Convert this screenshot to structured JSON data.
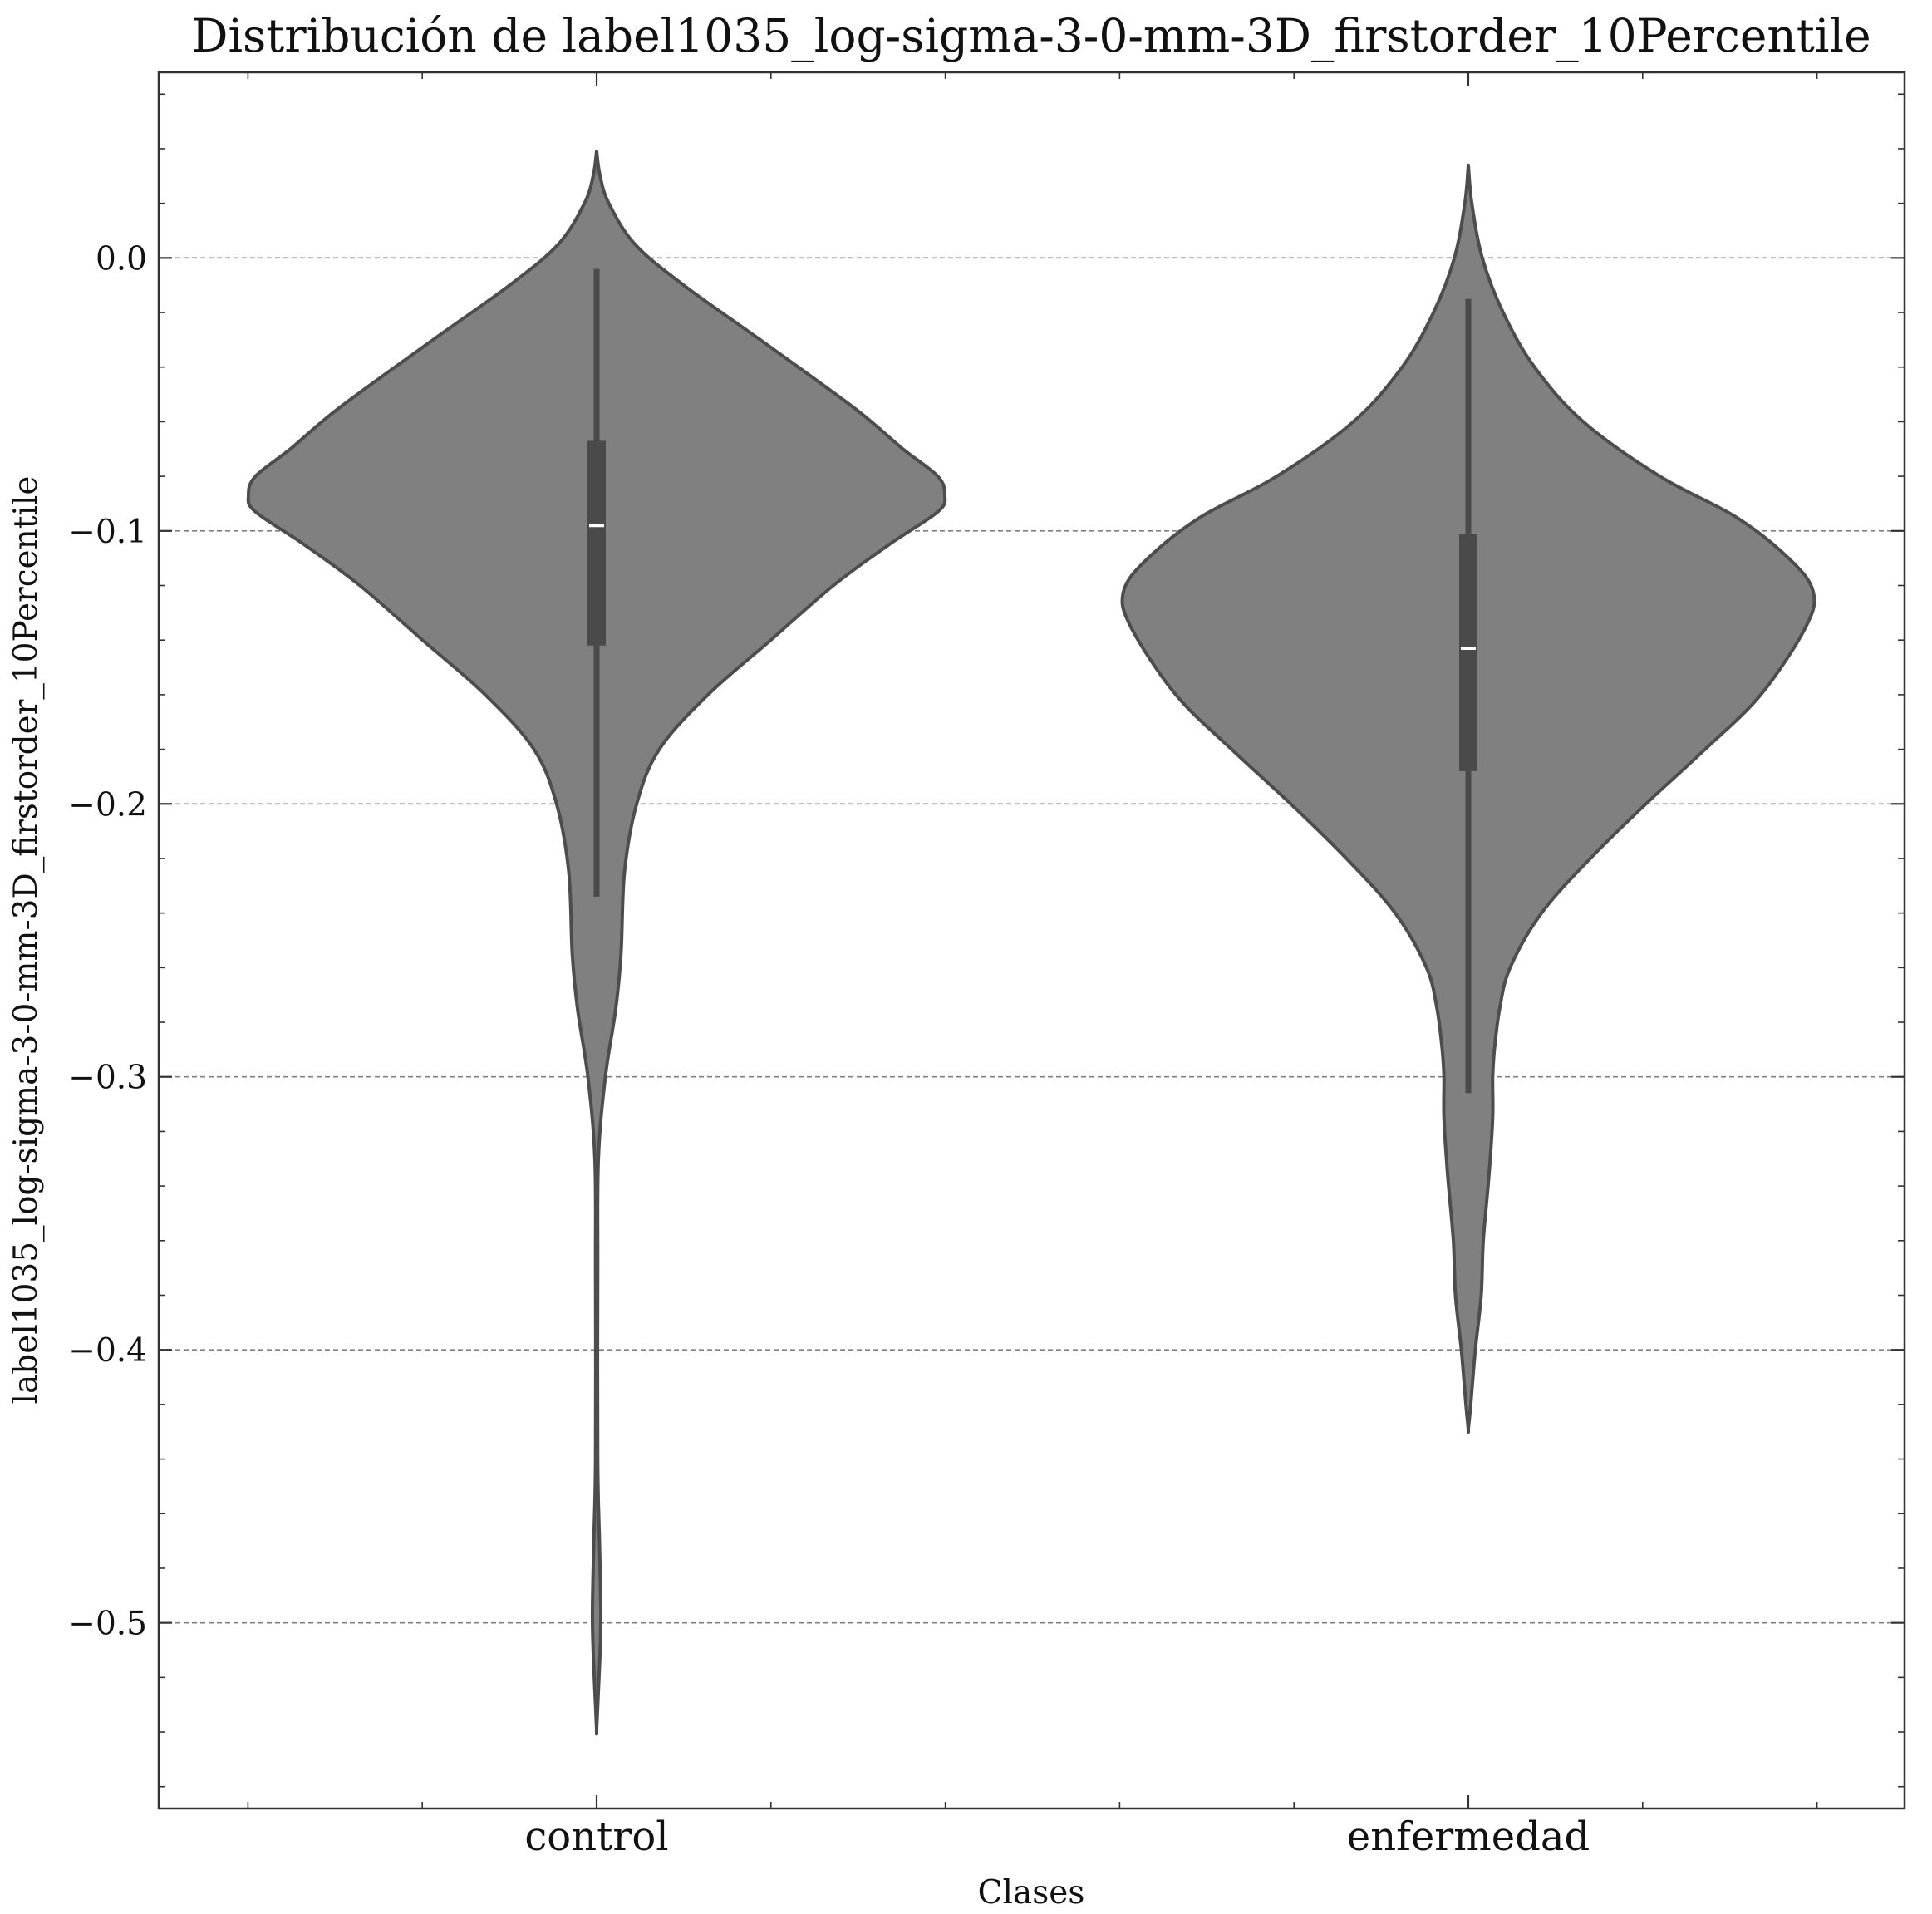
{
  "chart_data": {
    "type": "violin",
    "title": "Distribución de label1035_log-sigma-3-0-mm-3D_firstorder_10Percentile",
    "xlabel": "Clases",
    "ylabel": "label1035_log-sigma-3-0-mm-3D_firstorder_10Percentile",
    "categories": [
      "control",
      "enfermedad"
    ],
    "ylim": [
      -0.568,
      0.068
    ],
    "yticks": [
      0.0,
      -0.1,
      -0.2,
      -0.3,
      -0.4,
      -0.5
    ],
    "ytick_labels": [
      "0.0",
      "−0.1",
      "−0.2",
      "−0.3",
      "−0.4",
      "−0.5"
    ],
    "grid": "horizontal-dashed",
    "colors": {
      "violin_fill": "#808080",
      "violin_edge": "#4d4d4d",
      "box": "#4a4a4a",
      "median": "#ffffff",
      "grid": "#808080"
    },
    "series": [
      {
        "category": "control",
        "max": 0.039,
        "min": -0.539,
        "whisker_high": -0.004,
        "whisker_low": -0.234,
        "q3": -0.067,
        "q1": -0.142,
        "median": -0.098,
        "density_profile": [
          [
            0.039,
            0.0
          ],
          [
            0.03,
            0.01
          ],
          [
            0.02,
            0.035
          ],
          [
            0.005,
            0.11
          ],
          [
            -0.01,
            0.25
          ],
          [
            -0.03,
            0.47
          ],
          [
            -0.055,
            0.74
          ],
          [
            -0.07,
            0.88
          ],
          [
            -0.08,
            0.98
          ],
          [
            -0.087,
            1.0
          ],
          [
            -0.093,
            0.98
          ],
          [
            -0.105,
            0.84
          ],
          [
            -0.12,
            0.68
          ],
          [
            -0.14,
            0.5
          ],
          [
            -0.16,
            0.32
          ],
          [
            -0.18,
            0.18
          ],
          [
            -0.2,
            0.115
          ],
          [
            -0.225,
            0.08
          ],
          [
            -0.255,
            0.07
          ],
          [
            -0.275,
            0.055
          ],
          [
            -0.3,
            0.025
          ],
          [
            -0.33,
            0.005
          ],
          [
            -0.37,
            0.003
          ],
          [
            -0.44,
            0.003
          ],
          [
            -0.47,
            0.008
          ],
          [
            -0.495,
            0.012
          ],
          [
            -0.51,
            0.01
          ],
          [
            -0.525,
            0.005
          ],
          [
            -0.539,
            0.0
          ]
        ]
      },
      {
        "category": "enfermedad",
        "max": 0.034,
        "min": -0.429,
        "whisker_high": -0.015,
        "whisker_low": -0.306,
        "q3": -0.101,
        "q1": -0.188,
        "median": -0.143,
        "density_profile": [
          [
            0.034,
            0.0
          ],
          [
            0.02,
            0.01
          ],
          [
            0.0,
            0.04
          ],
          [
            -0.02,
            0.1
          ],
          [
            -0.04,
            0.19
          ],
          [
            -0.06,
            0.33
          ],
          [
            -0.08,
            0.55
          ],
          [
            -0.095,
            0.77
          ],
          [
            -0.11,
            0.92
          ],
          [
            -0.122,
            0.99
          ],
          [
            -0.135,
            0.97
          ],
          [
            -0.16,
            0.84
          ],
          [
            -0.18,
            0.68
          ],
          [
            -0.2,
            0.51
          ],
          [
            -0.22,
            0.35
          ],
          [
            -0.24,
            0.21
          ],
          [
            -0.26,
            0.12
          ],
          [
            -0.275,
            0.09
          ],
          [
            -0.29,
            0.075
          ],
          [
            -0.3,
            0.07
          ],
          [
            -0.315,
            0.07
          ],
          [
            -0.335,
            0.06
          ],
          [
            -0.36,
            0.043
          ],
          [
            -0.38,
            0.037
          ],
          [
            -0.4,
            0.02
          ],
          [
            -0.42,
            0.007
          ],
          [
            -0.429,
            0.0
          ]
        ]
      }
    ]
  }
}
